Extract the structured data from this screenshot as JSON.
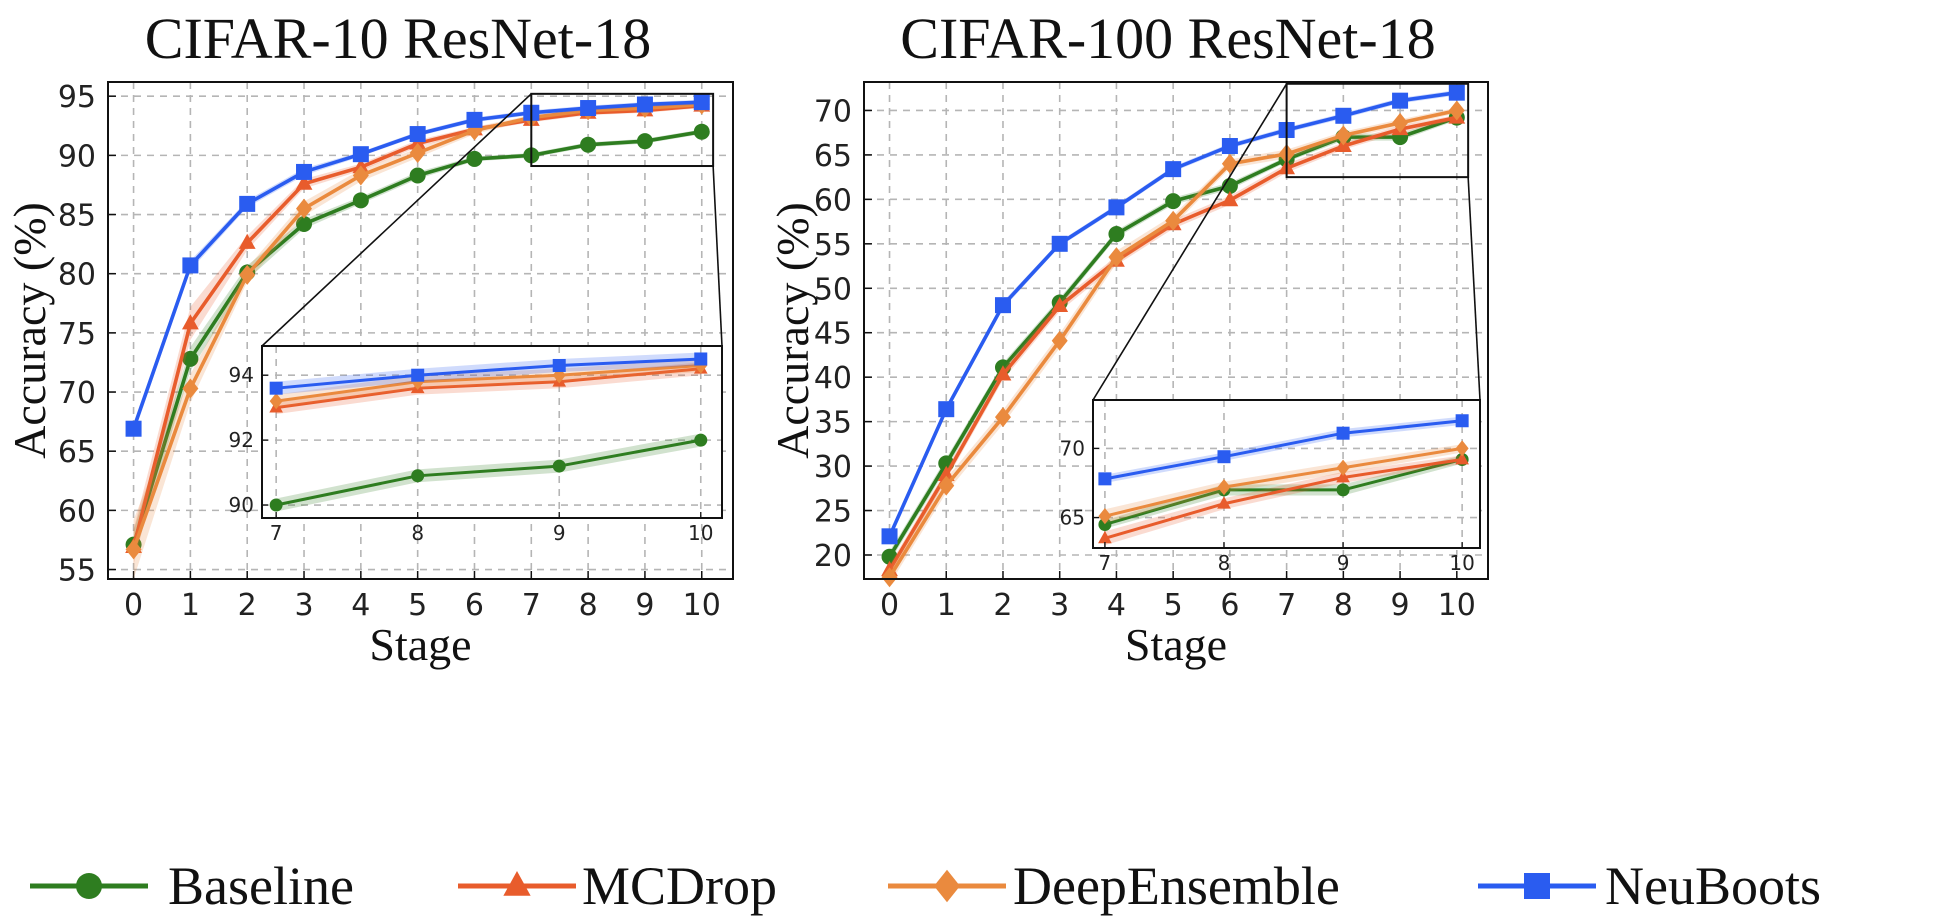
{
  "chart_data": [
    {
      "type": "line",
      "title": "CIFAR-10 ResNet-18",
      "xlabel": "Stage",
      "ylabel": "Accuracy (%)",
      "x": [
        0,
        1,
        2,
        3,
        4,
        5,
        6,
        7,
        8,
        9,
        10
      ],
      "xlim": [
        -0.45,
        10.55
      ],
      "ylim": [
        54.2,
        96.2
      ],
      "yticks": [
        55,
        60,
        65,
        70,
        75,
        80,
        85,
        90,
        95
      ],
      "grid": true,
      "series": [
        {
          "name": "Baseline",
          "values": [
            57.1,
            72.8,
            80.1,
            84.2,
            86.2,
            88.3,
            89.7,
            90.0,
            90.9,
            91.2,
            92.0
          ],
          "band": [
            1.2,
            1.0,
            0.6,
            0.4,
            0.3,
            0.3,
            0.2,
            0.2,
            0.2,
            0.2,
            0.2
          ]
        },
        {
          "name": "MCDrop",
          "values": [
            56.9,
            75.8,
            82.6,
            87.6,
            89.0,
            91.0,
            92.2,
            93.0,
            93.6,
            93.8,
            94.2
          ],
          "band": [
            1.5,
            1.4,
            0.6,
            0.4,
            0.3,
            0.3,
            0.2,
            0.2,
            0.2,
            0.2,
            0.2
          ]
        },
        {
          "name": "DeepEnsemble",
          "values": [
            56.7,
            70.3,
            79.9,
            85.5,
            88.3,
            90.2,
            92.1,
            93.2,
            93.8,
            94.0,
            94.3
          ],
          "band": [
            2.5,
            1.2,
            0.6,
            0.6,
            0.5,
            0.4,
            0.3,
            0.2,
            0.2,
            0.2,
            0.2
          ]
        },
        {
          "name": "NeuBoots",
          "values": [
            66.9,
            80.7,
            85.9,
            88.6,
            90.1,
            91.8,
            93.0,
            93.6,
            94.0,
            94.3,
            94.5
          ],
          "band": [
            0.5,
            0.4,
            0.3,
            0.3,
            0.2,
            0.2,
            0.2,
            0.2,
            0.2,
            0.2,
            0.2
          ]
        }
      ],
      "inset": {
        "x": [
          7,
          8,
          9,
          10
        ],
        "xlim": [
          6.9,
          10.15
        ],
        "ylim": [
          89.6,
          94.9
        ],
        "xticks": [
          7,
          8,
          9,
          10
        ],
        "yticks": [
          90,
          92,
          94
        ],
        "zoom_box": {
          "x": [
            7,
            10.2
          ],
          "y": [
            89.1,
            95.2
          ]
        }
      }
    },
    {
      "type": "line",
      "title": "CIFAR-100 ResNet-18",
      "xlabel": "Stage",
      "ylabel": "Accuracy (%)",
      "x": [
        0,
        1,
        2,
        3,
        4,
        5,
        6,
        7,
        8,
        9,
        10
      ],
      "xlim": [
        -0.45,
        10.55
      ],
      "ylim": [
        17.3,
        73.2
      ],
      "yticks": [
        20,
        25,
        30,
        35,
        40,
        45,
        50,
        55,
        60,
        65,
        70
      ],
      "grid": true,
      "series": [
        {
          "name": "Baseline",
          "values": [
            19.8,
            30.3,
            41.1,
            48.4,
            56.1,
            59.8,
            61.5,
            64.5,
            67.0,
            67.0,
            69.2
          ],
          "band": [
            0.6,
            0.6,
            0.5,
            0.5,
            0.4,
            0.4,
            0.4,
            0.3,
            0.4,
            0.4,
            0.3
          ]
        },
        {
          "name": "MCDrop",
          "values": [
            18.3,
            29.0,
            40.3,
            48.0,
            53.1,
            57.2,
            59.9,
            63.5,
            66.0,
            67.9,
            69.2
          ],
          "band": [
            0.6,
            0.6,
            0.6,
            0.6,
            0.5,
            0.5,
            0.5,
            0.5,
            0.4,
            0.4,
            0.3
          ]
        },
        {
          "name": "DeepEnsemble",
          "values": [
            17.5,
            27.8,
            35.5,
            44.1,
            53.5,
            57.6,
            64.0,
            65.1,
            67.2,
            68.6,
            70.0
          ],
          "band": [
            0.8,
            0.8,
            0.8,
            0.8,
            0.7,
            0.6,
            0.5,
            0.5,
            0.4,
            0.4,
            0.3
          ]
        },
        {
          "name": "NeuBoots",
          "values": [
            22.1,
            36.4,
            48.1,
            55.0,
            59.1,
            63.4,
            66.0,
            67.8,
            69.4,
            71.1,
            72.0
          ],
          "band": [
            0.4,
            0.4,
            0.4,
            0.3,
            0.3,
            0.3,
            0.3,
            0.3,
            0.3,
            0.3,
            0.3
          ]
        }
      ],
      "inset": {
        "x": [
          7,
          8,
          9,
          10
        ],
        "xlim": [
          6.9,
          10.15
        ],
        "ylim": [
          62.8,
          73.5
        ],
        "xticks": [
          7,
          8,
          9,
          10
        ],
        "yticks": [
          65,
          70
        ],
        "zoom_box": {
          "x": [
            7,
            10.2
          ],
          "y": [
            62.5,
            73.0
          ]
        }
      }
    }
  ],
  "legend": {
    "placement": "bottom",
    "entries": [
      "Baseline",
      "MCDrop",
      "DeepEnsemble",
      "NeuBoots"
    ]
  },
  "colors": {
    "Baseline": "#2e7d20",
    "MCDrop": "#e85c2c",
    "DeepEnsemble": "#ea8a3e",
    "NeuBoots": "#2a5cf0"
  },
  "markers": {
    "Baseline": "circle",
    "MCDrop": "triangle",
    "DeepEnsemble": "diamond",
    "NeuBoots": "square"
  }
}
